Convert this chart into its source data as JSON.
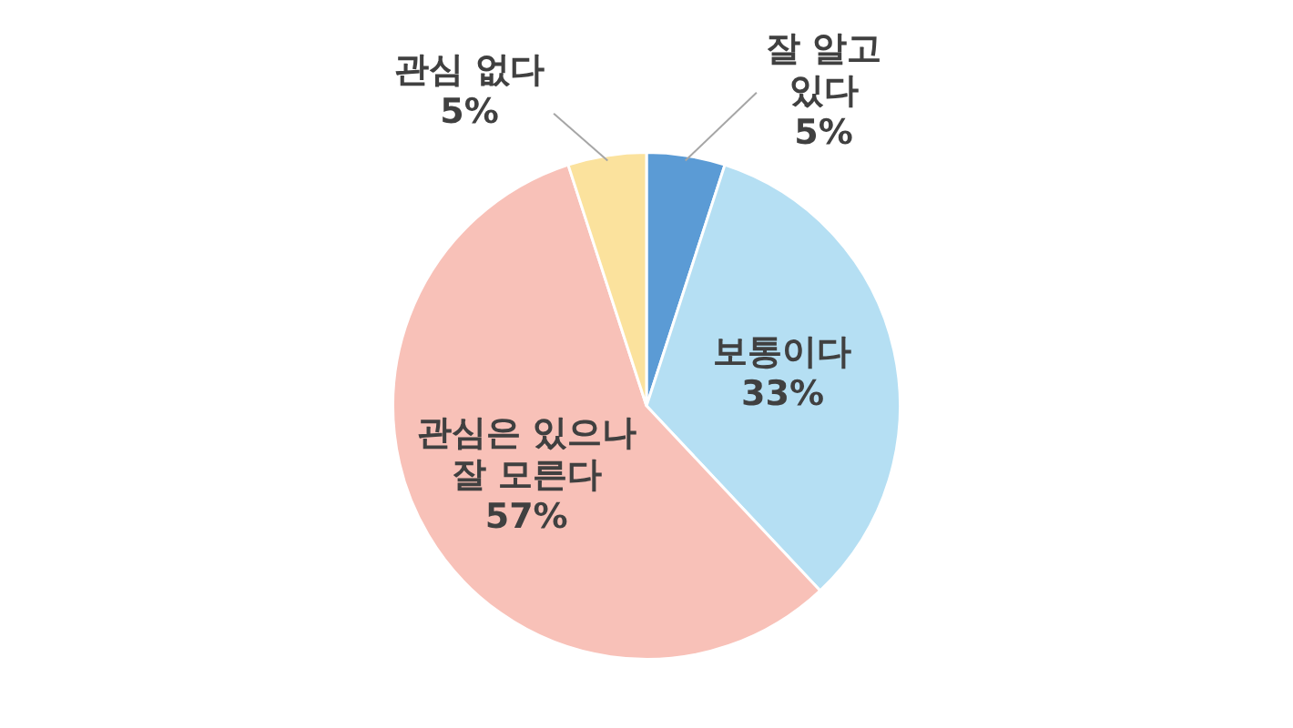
{
  "chart_data": {
    "type": "pie",
    "categories": [
      "잘 알고 있다",
      "보통이다",
      "관심은 있으나 잘 모른다",
      "관심 없다"
    ],
    "values": [
      5,
      33,
      57,
      5
    ],
    "value_labels": [
      "5%",
      "33%",
      "57%",
      "5%"
    ],
    "colors": [
      "#5b9bd5",
      "#b5dff3",
      "#f8c1b8",
      "#fbe29d"
    ]
  }
}
